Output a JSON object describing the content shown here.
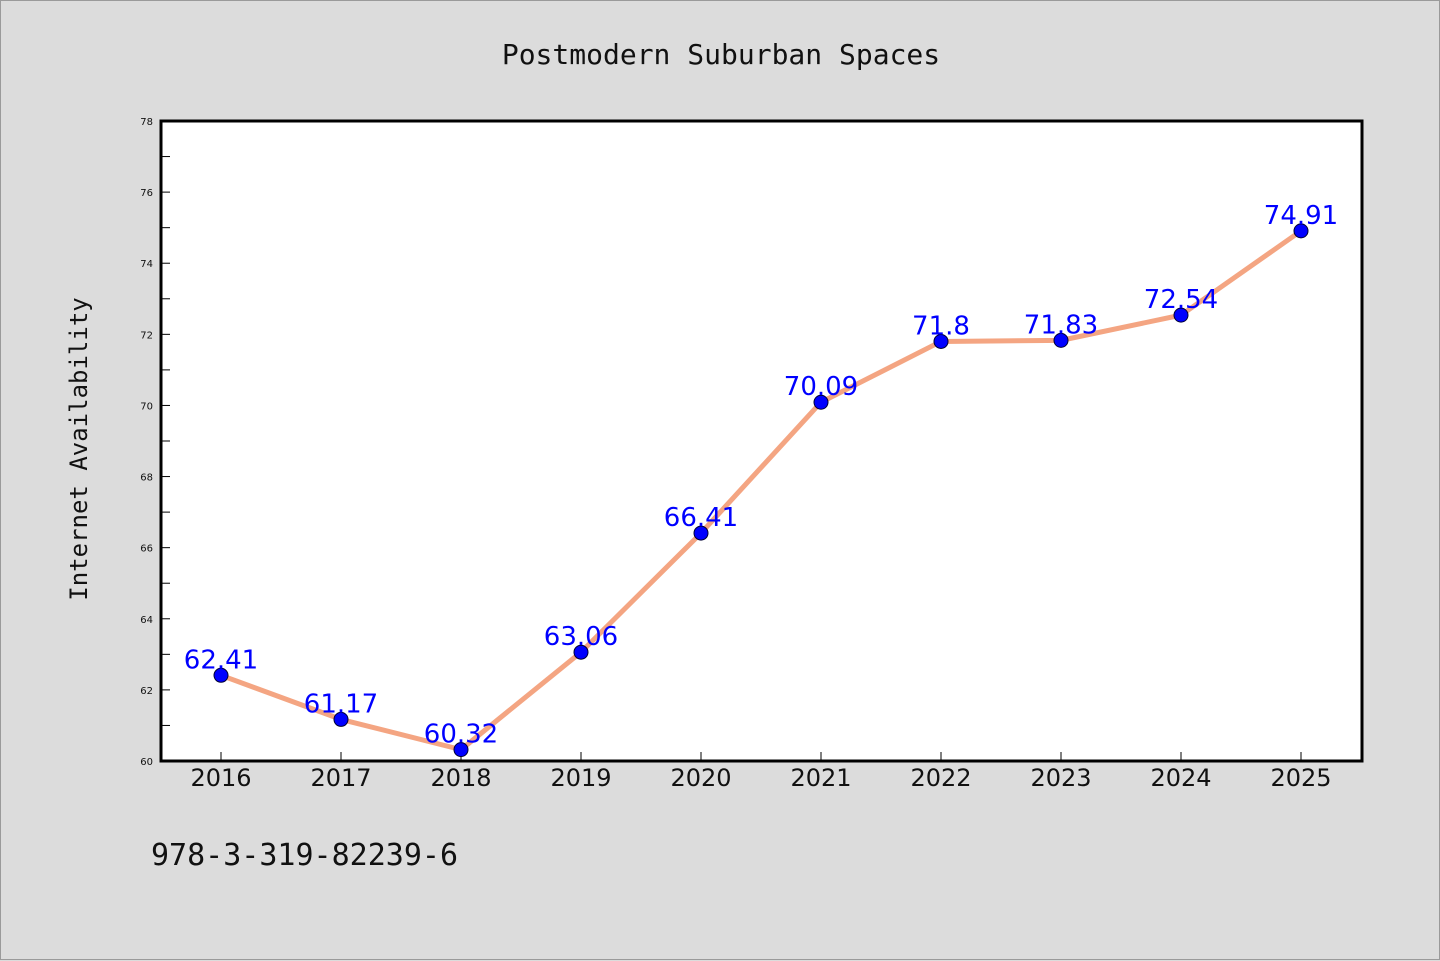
{
  "chart_data": {
    "type": "line",
    "title": "Postmodern Suburban Spaces",
    "xlabel": "",
    "ylabel": "Internet Availability",
    "categories": [
      "2016",
      "2017",
      "2018",
      "2019",
      "2020",
      "2021",
      "2022",
      "2023",
      "2024",
      "2025"
    ],
    "series": [
      {
        "values": [
          62.41,
          61.17,
          60.32,
          63.06,
          66.41,
          70.09,
          71.8,
          71.83,
          72.54,
          74.91
        ],
        "data_labels": [
          "62.41",
          "61.17",
          "60.32",
          "63.06",
          "66.41",
          "70.09",
          "71.8",
          "71.83",
          "72.54",
          "74.91"
        ],
        "line_color": "#f4a582",
        "marker_color": "#0000ff",
        "label_color": "#0000ff"
      }
    ],
    "ylim": [
      60,
      78
    ],
    "yticks": [
      60,
      62,
      64,
      66,
      68,
      70,
      72,
      74,
      76,
      78
    ],
    "ytick_labels": [
      "60",
      "62",
      "64",
      "66",
      "68",
      "70",
      "72",
      "74",
      "76",
      "78"
    ],
    "grid": false,
    "legend": "none",
    "background_color": "#dcdcdc",
    "plot_background_color": "#ffffff"
  },
  "footer": {
    "text": "978-3-319-82239-6"
  }
}
